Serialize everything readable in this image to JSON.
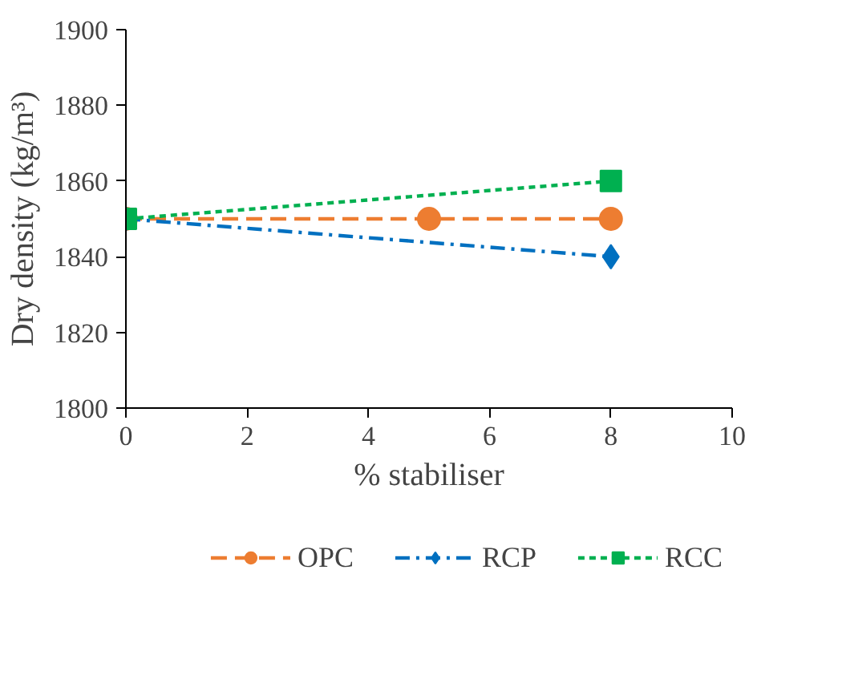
{
  "chart_data": {
    "type": "line",
    "xlabel": "% stabiliser",
    "ylabel": "Dry density (kg/m³)",
    "xlim": [
      0,
      10
    ],
    "xticks": [
      0,
      2,
      4,
      6,
      8,
      10
    ],
    "ylim": [
      1800,
      1900
    ],
    "yticks": [
      1800,
      1820,
      1840,
      1860,
      1880,
      1900
    ],
    "grid": false,
    "legend": "bottom",
    "series": [
      {
        "name": "OPC",
        "color": "#ed7d31",
        "x": [
          0,
          5,
          8
        ],
        "values": [
          1850,
          1850,
          1850
        ],
        "marker": "circle",
        "line_style": "dashed"
      },
      {
        "name": "RCP",
        "color": "#0070c0",
        "x": [
          0,
          8
        ],
        "values": [
          1850,
          1840
        ],
        "marker": "diamond",
        "line_style": "dashdot"
      },
      {
        "name": "RCC",
        "color": "#00b050",
        "x": [
          0,
          8
        ],
        "values": [
          1850,
          1860
        ],
        "marker": "square",
        "line_style": "dotted"
      }
    ]
  }
}
